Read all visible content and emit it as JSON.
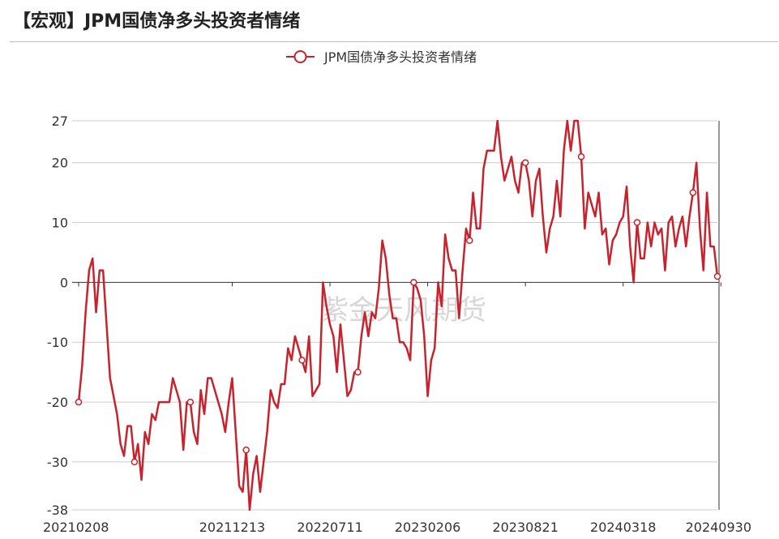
{
  "title": "【宏观】JPM国债净多头投资者情绪",
  "watermark": "紫金天风期货",
  "colors": {
    "series": "#c8232c",
    "grid": "#cccccc",
    "axis": "#333333"
  },
  "chart_data": {
    "type": "line",
    "legend": "top-center",
    "grid": true,
    "ylim": [
      -38,
      27
    ],
    "y_ticks": [
      27,
      20,
      10,
      0,
      -10,
      -20,
      -30,
      -38
    ],
    "x_tick_labels": [
      {
        "index": 0,
        "label": "20210208"
      },
      {
        "index": 44,
        "label": "20211213"
      },
      {
        "index": 72,
        "label": "20220711"
      },
      {
        "index": 100,
        "label": "20230206"
      },
      {
        "index": 128,
        "label": "20230821"
      },
      {
        "index": 156,
        "label": "20240318"
      },
      {
        "index": 184,
        "label": "20240930"
      }
    ],
    "series": [
      {
        "name": "JPM国债净多头投资者情绪",
        "values": [
          -20,
          -14,
          -5,
          2,
          4,
          -5,
          2,
          2,
          -7,
          -16,
          -19,
          -22,
          -27,
          -29,
          -24,
          -24,
          -30,
          -27,
          -33,
          -25,
          -27,
          -22,
          -23,
          -20,
          -20,
          -20,
          -20,
          -16,
          -18,
          -20,
          -28,
          -20,
          -20,
          -25,
          -27,
          -18,
          -22,
          -16,
          -16,
          -18,
          -20,
          -22,
          -25,
          -20,
          -16,
          -25,
          -34,
          -35,
          -28,
          -38,
          -32,
          -29,
          -35,
          -30,
          -25,
          -18,
          -20,
          -21,
          -17,
          -17,
          -11,
          -13,
          -9,
          -11,
          -13,
          -15,
          -9,
          -19,
          -18,
          -17,
          0,
          -4,
          -7,
          -9,
          -15,
          -7,
          -13,
          -19,
          -18,
          -15,
          -15,
          -9,
          -5,
          -9,
          -5,
          -6,
          -1,
          7,
          4,
          -2,
          -6,
          -6,
          -10,
          -10,
          -11,
          -13,
          0,
          -1,
          -3,
          -9,
          -19,
          -13,
          -11,
          0,
          -4,
          8,
          4,
          2,
          2,
          -6,
          2,
          9,
          7,
          15,
          9,
          9,
          19,
          22,
          22,
          22,
          27,
          21,
          17,
          19,
          21,
          17,
          15,
          20,
          20,
          17,
          11,
          17,
          19,
          11,
          5,
          9,
          11,
          17,
          11,
          22,
          27,
          22,
          27,
          27,
          21,
          9,
          15,
          13,
          11,
          15,
          8,
          9,
          3,
          7,
          8,
          10,
          11,
          16,
          6,
          0,
          10,
          4,
          4,
          10,
          6,
          10,
          8,
          9,
          2,
          10,
          11,
          6,
          9,
          11,
          6,
          11,
          15,
          20,
          9,
          2,
          15,
          6,
          6,
          1
        ]
      }
    ]
  }
}
